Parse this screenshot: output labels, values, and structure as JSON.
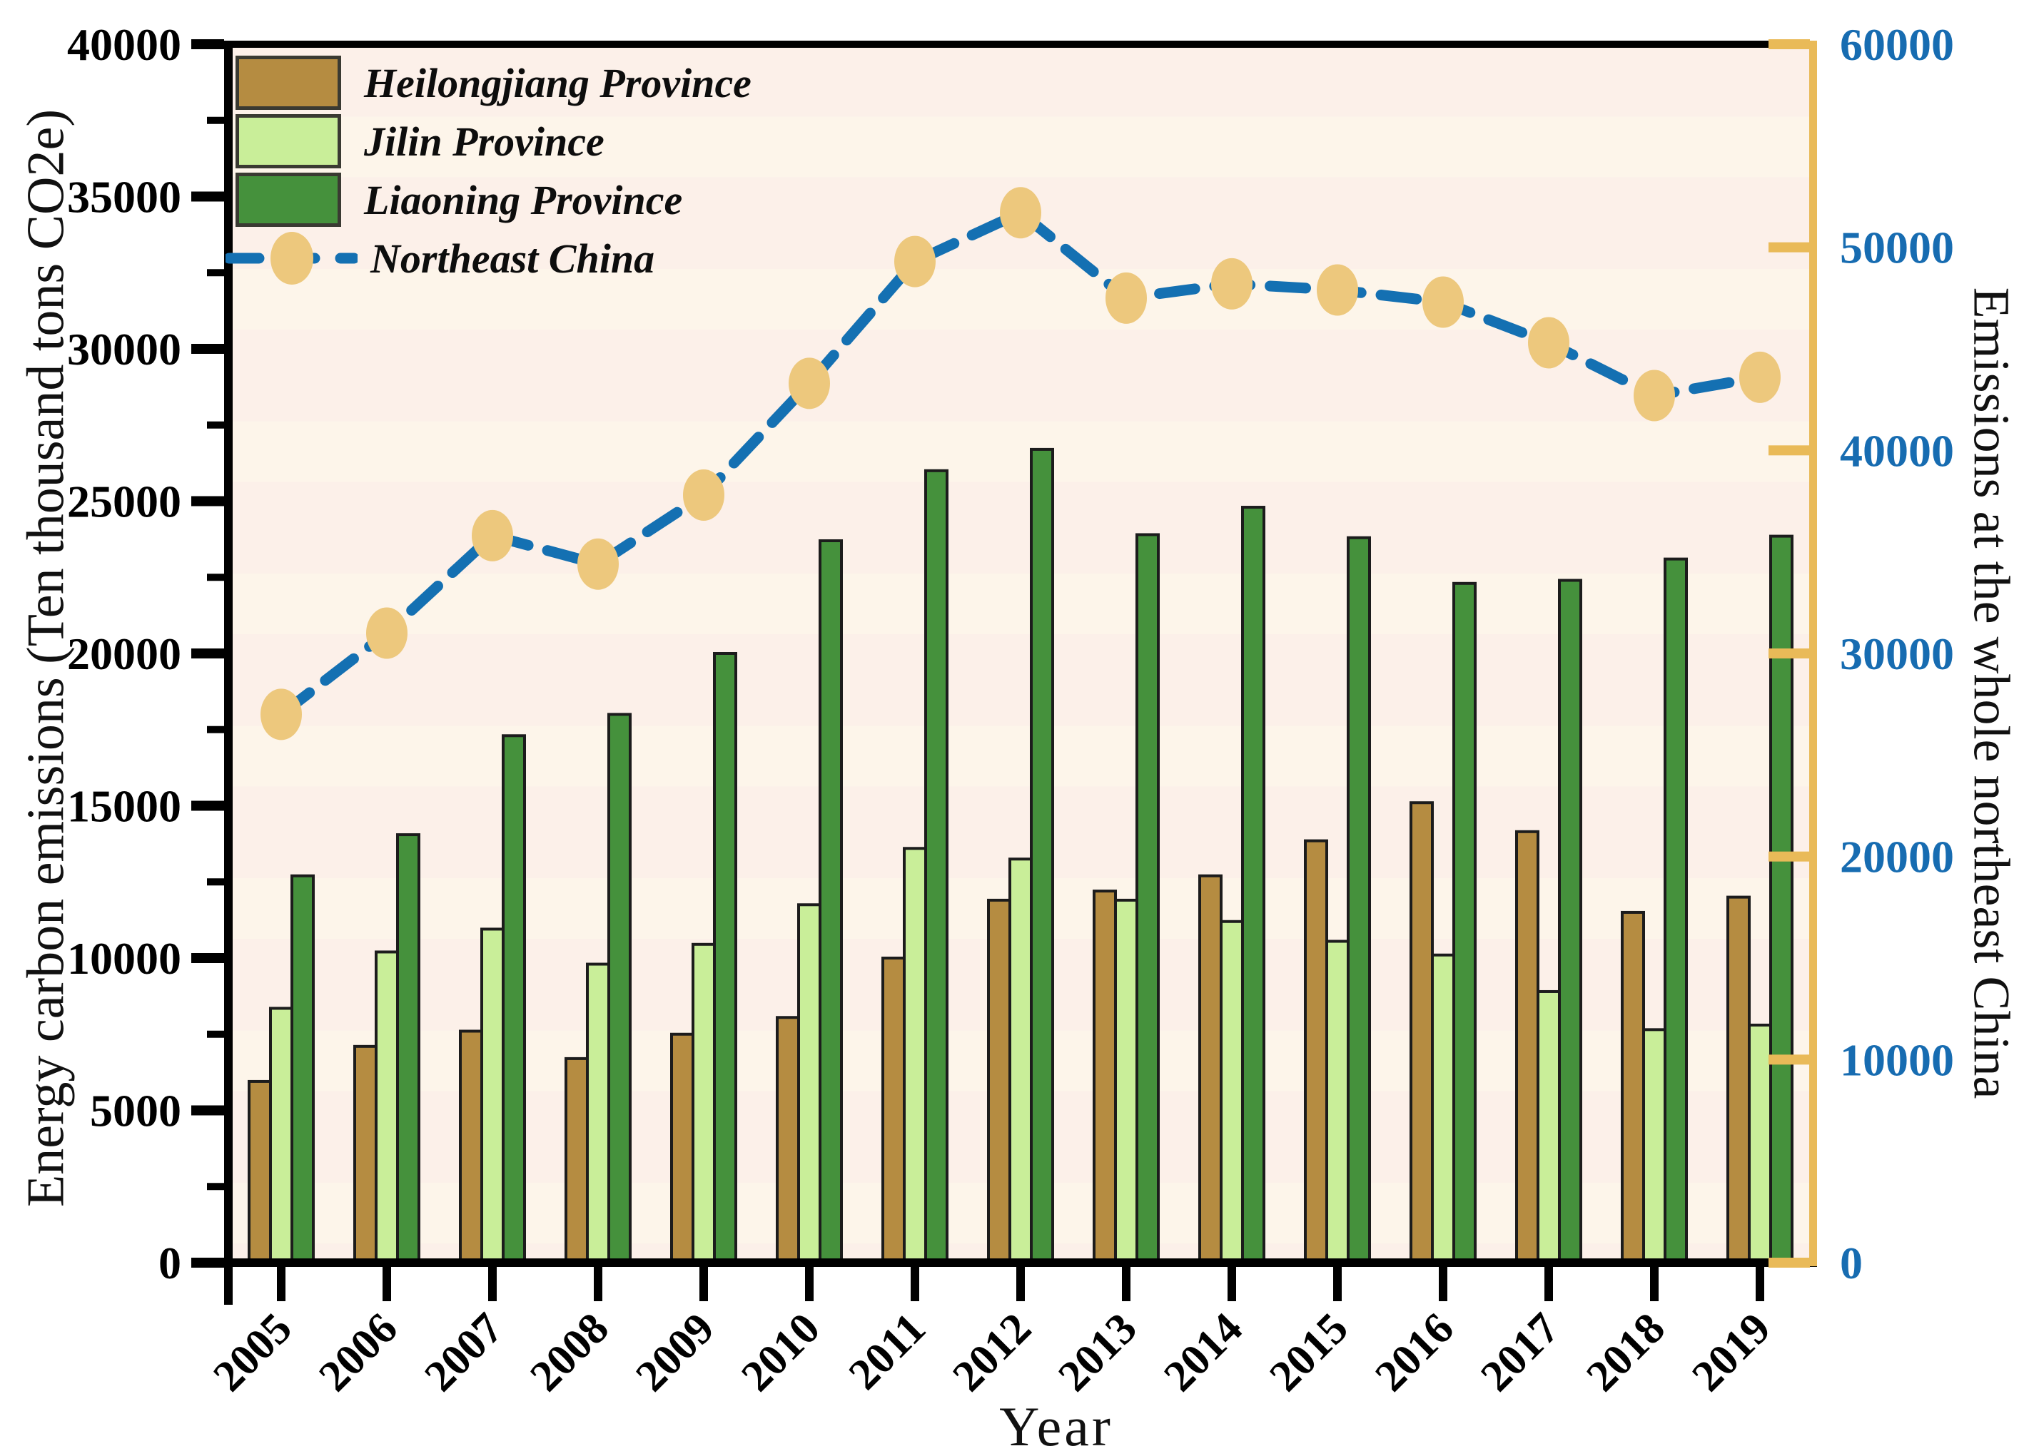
{
  "figure": {
    "type": "dual-axis bar and line chart",
    "background": "#ffffff",
    "plot_background": "#fcf0e9",
    "plot_band_color": "#fdfaeb"
  },
  "chart_data": {
    "type": "bar",
    "title": "",
    "categories": [
      "2005",
      "2006",
      "2007",
      "2008",
      "2009",
      "2010",
      "2011",
      "2012",
      "2013",
      "2014",
      "2015",
      "2016",
      "2017",
      "2018",
      "2019"
    ],
    "series": [
      {
        "name": "Heilongjiang Province",
        "type": "bar",
        "axis": "left",
        "color": "#b58c41",
        "values": [
          5950,
          7100,
          7600,
          6700,
          7500,
          8050,
          10000,
          11900,
          12200,
          12700,
          13850,
          15100,
          14150,
          11500,
          12000
        ]
      },
      {
        "name": "Jilin Province",
        "type": "bar",
        "axis": "left",
        "color": "#c9ee99",
        "values": [
          8350,
          10200,
          10950,
          9800,
          10450,
          11750,
          13600,
          13250,
          11900,
          11200,
          10550,
          10100,
          8900,
          7650,
          7800
        ]
      },
      {
        "name": "Liaoning Province",
        "type": "bar",
        "axis": "left",
        "color": "#45913c",
        "values": [
          12700,
          14050,
          17300,
          18000,
          20000,
          23700,
          26000,
          26700,
          23900,
          24800,
          23800,
          22300,
          22400,
          23100,
          23850
        ]
      },
      {
        "name": "Northeast China",
        "type": "line",
        "axis": "right",
        "color": "#1470b2",
        "marker_color": "#edc87d",
        "values": [
          27000,
          31000,
          35800,
          34400,
          37800,
          43300,
          49300,
          51700,
          47500,
          48200,
          47900,
          47300,
          45300,
          42700,
          43600
        ]
      }
    ],
    "xlabel": "Year",
    "ylabel_left": "Energy carbon emissions (Ten thousand tons CO2e)",
    "ylabel_right": "Emissions at the whole northeast China",
    "left_axis": {
      "min": 0,
      "max": 40000,
      "major_step": 5000,
      "minor_step": 2500,
      "tick_labels": [
        "0",
        "5000",
        "10000",
        "15000",
        "20000",
        "25000",
        "30000",
        "35000",
        "40000"
      ],
      "label_color": "#000000",
      "spine_color": "#000000"
    },
    "right_axis": {
      "min": 0,
      "max": 60000,
      "major_step": 10000,
      "tick_labels": [
        "0",
        "10000",
        "20000",
        "30000",
        "40000",
        "50000",
        "60000"
      ],
      "label_color": "#176cb1",
      "spine_color": "#e9ba58"
    },
    "grid": false,
    "legend_position": "upper-left-inside",
    "bar_outline_color": "#1c1c1c",
    "line_dash": "dashed"
  },
  "legend": {
    "items": [
      {
        "label": "Heilongjiang Province",
        "swatch_color": "#b58c41",
        "kind": "bar-swatch"
      },
      {
        "label": "Jilin Province",
        "swatch_color": "#c9ee99",
        "kind": "bar-swatch"
      },
      {
        "label": "Liaoning Province",
        "swatch_color": "#45913c",
        "kind": "bar-swatch"
      },
      {
        "label": "Northeast China",
        "kind": "dashed-line-with-marker",
        "line_color": "#1470b2",
        "marker_color": "#edc87d"
      }
    ]
  },
  "titles": {
    "left_axis": "Energy carbon emissions (Ten thousand tons CO2e)",
    "right_axis": "Emissions at the whole northeast China",
    "x_axis": "Year"
  }
}
